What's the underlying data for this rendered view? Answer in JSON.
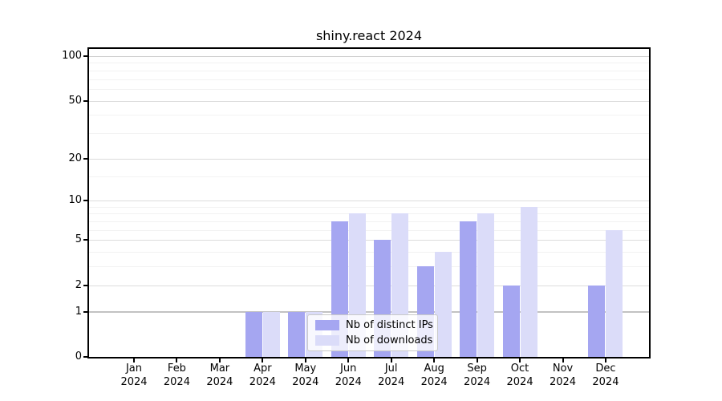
{
  "chart_data": {
    "type": "bar",
    "title": "shiny.react 2024",
    "x_year": "2024",
    "categories": [
      "Jan",
      "Feb",
      "Mar",
      "Apr",
      "May",
      "Jun",
      "Jul",
      "Aug",
      "Sep",
      "Oct",
      "Nov",
      "Dec"
    ],
    "series": [
      {
        "name": "Nb of distinct IPs",
        "color": "#a5a6f1",
        "values": [
          0,
          0,
          0,
          1,
          1,
          7,
          5,
          3,
          7,
          2,
          0,
          2
        ]
      },
      {
        "name": "Nb of downloads",
        "color": "#dbdcf9",
        "values": [
          0,
          0,
          0,
          1,
          1,
          8,
          8,
          4,
          8,
          9,
          0,
          6
        ]
      }
    ],
    "y_ticks": [
      0,
      1,
      2,
      5,
      10,
      20,
      50,
      100
    ],
    "y_minor_ticks": [
      3,
      4,
      6,
      7,
      8,
      9,
      15,
      30,
      40,
      60,
      70,
      80,
      90
    ],
    "y_scale": "log1p",
    "ylim": [
      0,
      112
    ],
    "grid": "on",
    "legend_position": "inside-lower-center",
    "colors": {
      "axis": "#000000",
      "grid_major": "#dcdcdc",
      "grid_minor": "#f2f2f2",
      "grid_baseline_1": "#c2c2c2",
      "grid_top_100": "#d0d0d0",
      "legend_border": "#c9c9c9"
    }
  }
}
